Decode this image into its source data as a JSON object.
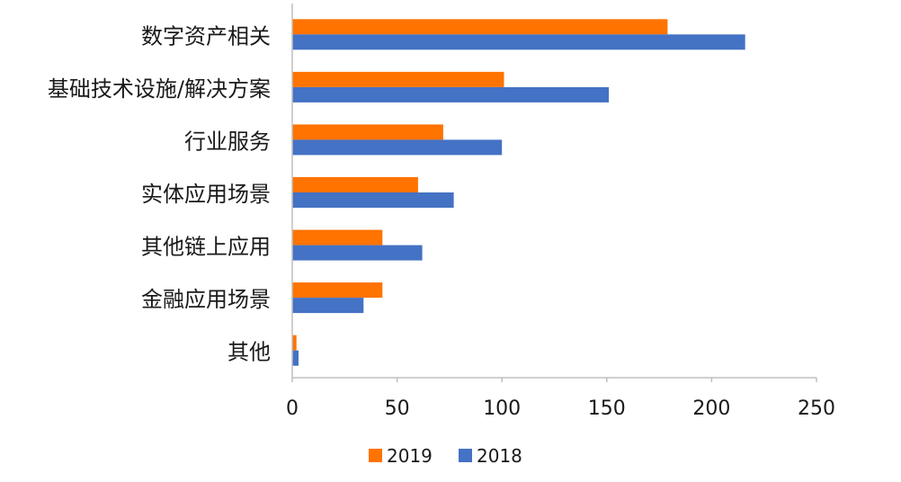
{
  "chart_data": {
    "type": "bar",
    "orientation": "horizontal",
    "title": "",
    "xlabel": "",
    "ylabel": "",
    "categories": [
      "数字资产相关",
      "基础技术设施/解决方案",
      "行业服务",
      "实体应用场景",
      "其他链上应用",
      "金融应用场景",
      "其他"
    ],
    "series": [
      {
        "name": "2019",
        "color": "#ff7300",
        "values": [
          179,
          101,
          72,
          60,
          43,
          43,
          2
        ]
      },
      {
        "name": "2018",
        "color": "#4472c4",
        "values": [
          216,
          151,
          100,
          77,
          62,
          34,
          3
        ]
      }
    ],
    "xlim": [
      0,
      250
    ],
    "xticks": [
      0,
      50,
      100,
      150,
      200,
      250
    ],
    "grid": false,
    "legend_position": "bottom"
  }
}
